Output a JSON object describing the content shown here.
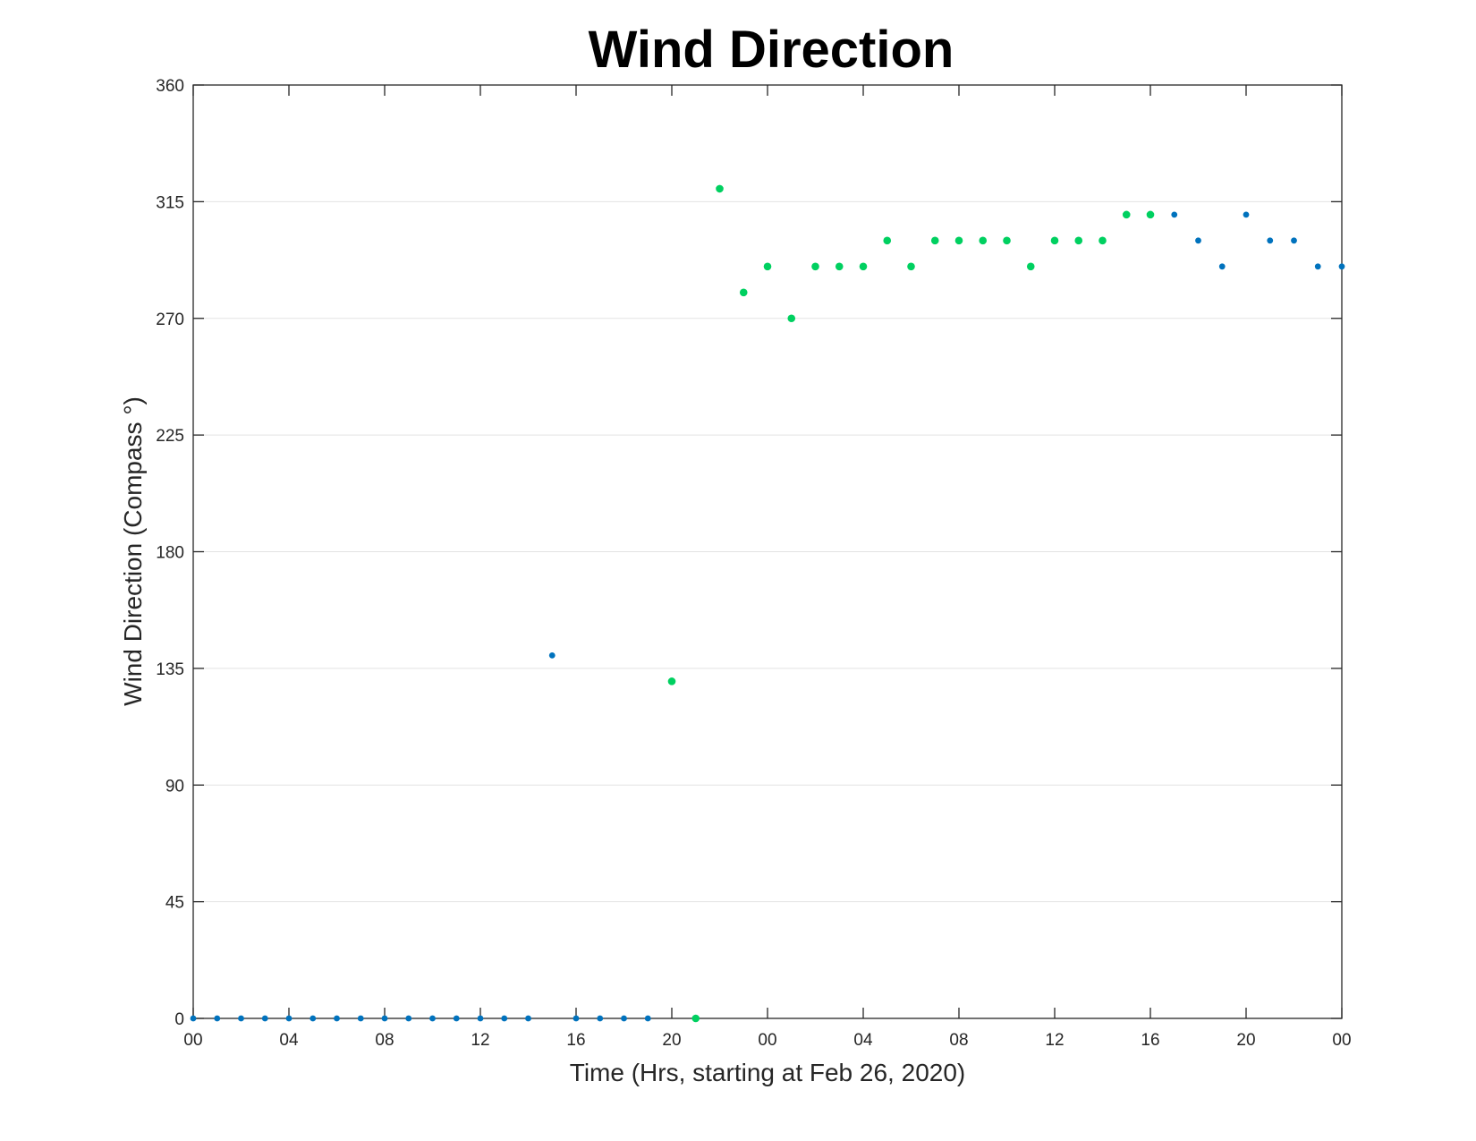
{
  "chart_data": {
    "type": "scatter",
    "title": "Wind Direction",
    "xlabel": "Time (Hrs, starting at Feb 26, 2020)",
    "ylabel": "Wind Direction (Compass °)",
    "xlim": [
      0,
      48
    ],
    "ylim": [
      0,
      360
    ],
    "x_ticks": [
      0,
      4,
      8,
      12,
      16,
      20,
      24,
      28,
      32,
      36,
      40,
      44,
      48
    ],
    "x_tick_labels": [
      "00",
      "04",
      "08",
      "12",
      "16",
      "20",
      "00",
      "04",
      "08",
      "12",
      "16",
      "20",
      "00"
    ],
    "y_ticks": [
      0,
      45,
      90,
      135,
      180,
      225,
      270,
      315,
      360
    ],
    "y_tick_labels": [
      "0",
      "45",
      "90",
      "135",
      "180",
      "225",
      "270",
      "315",
      "360"
    ],
    "grid": "horizontal",
    "series": [
      {
        "color": "#0072BD",
        "points": [
          [
            0,
            0
          ],
          [
            1,
            0
          ],
          [
            2,
            0
          ],
          [
            3,
            0
          ],
          [
            4,
            0
          ],
          [
            5,
            0
          ],
          [
            6,
            0
          ],
          [
            7,
            0
          ],
          [
            8,
            0
          ],
          [
            9,
            0
          ],
          [
            10,
            0
          ],
          [
            11,
            0
          ],
          [
            12,
            0
          ],
          [
            13,
            0
          ],
          [
            14,
            0
          ],
          [
            15,
            140
          ],
          [
            16,
            0
          ],
          [
            17,
            0
          ],
          [
            18,
            0
          ],
          [
            19,
            0
          ],
          [
            41,
            310
          ],
          [
            42,
            300
          ],
          [
            43,
            290
          ],
          [
            44,
            310
          ],
          [
            45,
            300
          ],
          [
            46,
            300
          ],
          [
            47,
            290
          ],
          [
            48,
            290
          ]
        ]
      },
      {
        "color": "#00D060",
        "points": [
          [
            20,
            130
          ],
          [
            21,
            0
          ],
          [
            22,
            320
          ],
          [
            23,
            280
          ],
          [
            24,
            290
          ],
          [
            25,
            270
          ],
          [
            26,
            290
          ],
          [
            27,
            290
          ],
          [
            28,
            290
          ],
          [
            29,
            300
          ],
          [
            30,
            290
          ],
          [
            31,
            300
          ],
          [
            32,
            300
          ],
          [
            33,
            300
          ],
          [
            34,
            300
          ],
          [
            35,
            290
          ],
          [
            36,
            300
          ],
          [
            37,
            300
          ],
          [
            38,
            300
          ],
          [
            39,
            310
          ],
          [
            40,
            310
          ]
        ]
      }
    ]
  }
}
